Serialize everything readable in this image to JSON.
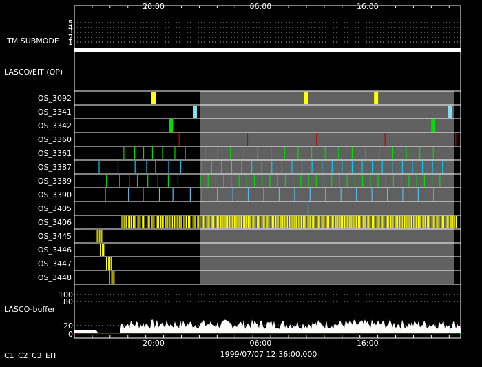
{
  "chart_data": {
    "type": "timeline",
    "x_ticks": [
      "20:00",
      "06:00",
      "16:00"
    ],
    "footer_timestamp": "1999/07/07 12:36:00.000",
    "tm_submode": {
      "label": "TM SUBMODE",
      "levels": [
        "5",
        "4",
        "3",
        "2",
        "1"
      ],
      "active_level": "1"
    },
    "section_label": "LASCO/EIT (OP)",
    "rows": [
      {
        "name": "OS_3092",
        "color": "#ffff00",
        "events": [
          0.205,
          0.6,
          0.781
        ]
      },
      {
        "name": "OS_3341",
        "color": "#7fe0f0",
        "events": [
          0.312,
          0.973
        ]
      },
      {
        "name": "OS_3342",
        "color": "#00dd00",
        "events": [
          0.25,
          0.929
        ]
      },
      {
        "name": "OS_3360",
        "color": "#cc0000",
        "events": [
          0.271,
          0.448,
          0.627,
          0.804,
          0.987
        ]
      },
      {
        "name": "OS_3361",
        "color": "#00dd00",
        "events": [
          0.128,
          0.156,
          0.179,
          0.202,
          0.228,
          0.26,
          0.287,
          0.338,
          0.371,
          0.404,
          0.439,
          0.474,
          0.509,
          0.544,
          0.579,
          0.614,
          0.649,
          0.684,
          0.719,
          0.754,
          0.789,
          0.824,
          0.859,
          0.894,
          0.929
        ]
      },
      {
        "name": "OS_3387",
        "color": "#00ccff",
        "events": [
          0.064,
          0.113,
          0.157,
          0.187,
          0.21,
          0.244,
          0.275,
          0.33,
          0.355,
          0.381,
          0.407,
          0.433,
          0.459,
          0.485,
          0.511,
          0.537,
          0.563,
          0.589,
          0.615,
          0.641,
          0.667,
          0.693,
          0.719,
          0.745,
          0.771,
          0.797,
          0.823,
          0.849,
          0.875,
          0.901,
          0.927,
          0.953
        ]
      },
      {
        "name": "OS_3389",
        "color": "#00dd00",
        "events": [
          0.083,
          0.117,
          0.142,
          0.163,
          0.19,
          0.216,
          0.243,
          0.268,
          0.326,
          0.346,
          0.366,
          0.386,
          0.406,
          0.426,
          0.446,
          0.466,
          0.486,
          0.506,
          0.526,
          0.546,
          0.566,
          0.586,
          0.606,
          0.626,
          0.646,
          0.666,
          0.686,
          0.706,
          0.726,
          0.746,
          0.766,
          0.786,
          0.806,
          0.826,
          0.846,
          0.866,
          0.886,
          0.906,
          0.926,
          0.946
        ]
      },
      {
        "name": "OS_3390",
        "color": "#55bbee",
        "events": [
          0.08,
          0.14,
          0.178,
          0.22,
          0.255,
          0.3,
          0.33,
          0.37,
          0.41,
          0.45,
          0.49,
          0.53,
          0.57,
          0.61,
          0.65,
          0.69,
          0.73,
          0.77,
          0.81,
          0.85,
          0.89,
          0.93
        ]
      },
      {
        "name": "OS_3405",
        "color": "#7fc8e8",
        "events": [
          0.605
        ]
      },
      {
        "name": "OS_3406",
        "color": "#ffff00",
        "dense": [
          [
            0.122,
            0.99
          ]
        ]
      },
      {
        "name": "OS_3445",
        "color": "#ffff00",
        "dense": [
          [
            0.058,
            0.072
          ]
        ]
      },
      {
        "name": "OS_3446",
        "color": "#ffff00",
        "dense": [
          [
            0.066,
            0.08
          ]
        ]
      },
      {
        "name": "OS_3447",
        "color": "#ffff00",
        "dense": [
          [
            0.082,
            0.096
          ]
        ]
      },
      {
        "name": "OS_3448",
        "color": "#ffff00",
        "dense": [
          [
            0.09,
            0.104
          ]
        ]
      }
    ],
    "shaded_range": [
      0.325,
      1.0
    ],
    "lasco_buffer": {
      "label": "LASCO-buffer",
      "gridlines": [
        "100",
        "80"
      ],
      "scale": [
        "20",
        "0"
      ]
    },
    "legend": [
      {
        "label": "C1",
        "color": "#ff3333"
      },
      {
        "label": "C2",
        "color": "#33ff33"
      },
      {
        "label": "C3",
        "color": "#ffffff"
      },
      {
        "label": "EIT",
        "color": "#ffffff"
      }
    ]
  }
}
